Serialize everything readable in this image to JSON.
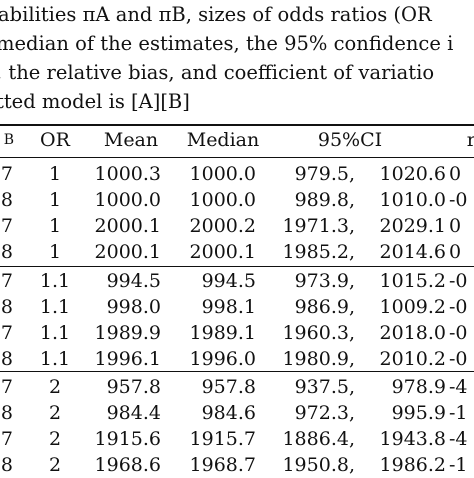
{
  "caption": {
    "lines": [
      "abilities πA and πB, sizes of odds ratios (OR",
      "median of the estimates, the 95% confidence i",
      ", the relative bias, and coefficient of variatio",
      "tted model is [A][B]"
    ]
  },
  "table": {
    "headers": [
      "B",
      "OR",
      "Mean",
      "Median",
      "95%CI",
      "rb"
    ],
    "groups": [
      {
        "rows": [
          [
            "7",
            "1",
            "1000.3",
            "1000.0",
            "979.5,",
            "1020.6",
            "0"
          ],
          [
            "8",
            "1",
            "1000.0",
            "1000.0",
            "989.8,",
            "1010.0",
            "-0"
          ],
          [
            "7",
            "1",
            "2000.1",
            "2000.2",
            "1971.3,",
            "2029.1",
            "0"
          ],
          [
            "8",
            "1",
            "2000.1",
            "2000.1",
            "1985.2,",
            "2014.6",
            "0"
          ]
        ]
      },
      {
        "rows": [
          [
            "7",
            "1.1",
            "994.5",
            "994.5",
            "973.9,",
            "1015.2",
            "-0"
          ],
          [
            "8",
            "1.1",
            "998.0",
            "998.1",
            "986.9,",
            "1009.2",
            "-0"
          ],
          [
            "7",
            "1.1",
            "1989.9",
            "1989.1",
            "1960.3,",
            "2018.0",
            "-0"
          ],
          [
            "8",
            "1.1",
            "1996.1",
            "1996.0",
            "1980.9,",
            "2010.2",
            "-0"
          ]
        ]
      },
      {
        "rows": [
          [
            "7",
            "2",
            "957.8",
            "957.8",
            "937.5,",
            "978.9",
            "-4"
          ],
          [
            "8",
            "2",
            "984.4",
            "984.6",
            "972.3,",
            "995.9",
            "-1"
          ],
          [
            "7",
            "2",
            "1915.6",
            "1915.7",
            "1886.4,",
            "1943.8",
            "-4"
          ],
          [
            "8",
            "2",
            "1968.6",
            "1968.7",
            "1950.8,",
            "1986.2",
            "-1"
          ]
        ]
      }
    ]
  }
}
